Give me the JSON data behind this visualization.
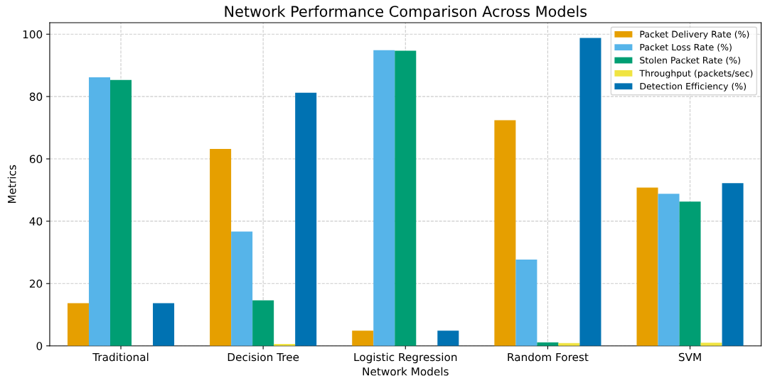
{
  "chart_data": {
    "type": "bar",
    "title": "Network Performance Comparison Across Models",
    "xlabel": "Network Models",
    "ylabel": "Metrics",
    "categories": [
      "Traditional",
      "Decision Tree",
      "Logistic Regression",
      "Random Forest",
      "SVM"
    ],
    "series": [
      {
        "name": "Packet Delivery Rate (%)",
        "color": "#e69f00",
        "values": [
          13.7,
          63.2,
          4.9,
          72.4,
          50.8
        ]
      },
      {
        "name": "Packet Loss Rate (%)",
        "color": "#56b4e9",
        "values": [
          86.2,
          36.7,
          94.9,
          27.7,
          48.8
        ]
      },
      {
        "name": "Stolen Packet Rate (%)",
        "color": "#009e73",
        "values": [
          85.3,
          14.6,
          94.7,
          1.1,
          46.3
        ]
      },
      {
        "name": "Throughput (packets/sec)",
        "color": "#f0e442",
        "values": [
          0,
          0.6,
          0,
          0.9,
          1.0
        ]
      },
      {
        "name": "Detection Efficiency (%)",
        "color": "#0072b2",
        "values": [
          13.7,
          81.2,
          4.9,
          98.8,
          52.2
        ]
      }
    ],
    "ylim": [
      0,
      103.7
    ],
    "yticks": [
      0,
      20,
      40,
      60,
      80,
      100
    ],
    "grid": true,
    "legend": "top right"
  }
}
